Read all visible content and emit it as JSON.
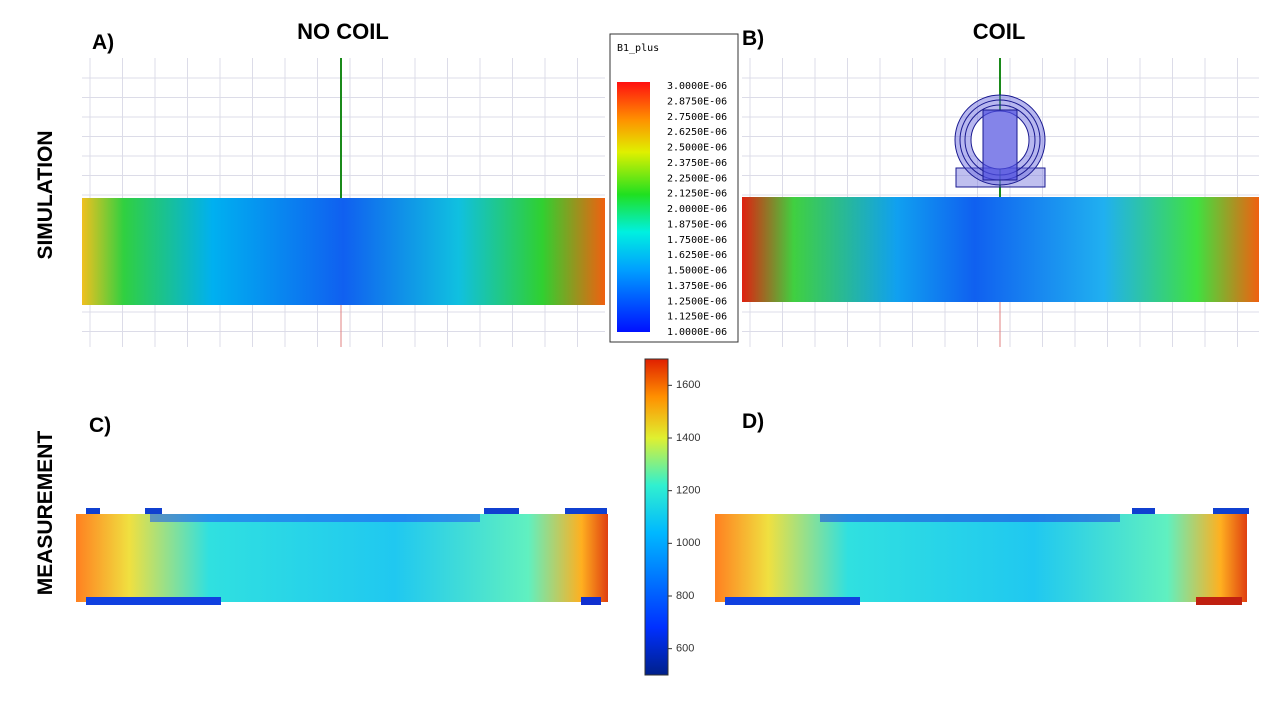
{
  "panels": {
    "a": "A)",
    "b": "B)",
    "c": "C)",
    "d": "D)"
  },
  "columns": {
    "left": "NO COIL",
    "right": "COIL"
  },
  "rows": {
    "top": "SIMULATION",
    "bottom": "MEASUREMENT"
  },
  "simulation_legend": {
    "title": "B1_plus",
    "labels": [
      "3.0000E-06",
      "2.8750E-06",
      "2.7500E-06",
      "2.6250E-06",
      "2.5000E-06",
      "2.3750E-06",
      "2.2500E-06",
      "2.1250E-06",
      "2.0000E-06",
      "1.8750E-06",
      "1.7500E-06",
      "1.6250E-06",
      "1.5000E-06",
      "1.3750E-06",
      "1.2500E-06",
      "1.1250E-06",
      "1.0000E-06"
    ]
  },
  "measurement_colorbar": {
    "lim": [
      500,
      1700
    ],
    "ticks": [
      600,
      800,
      1000,
      1200,
      1400,
      1600
    ]
  }
}
